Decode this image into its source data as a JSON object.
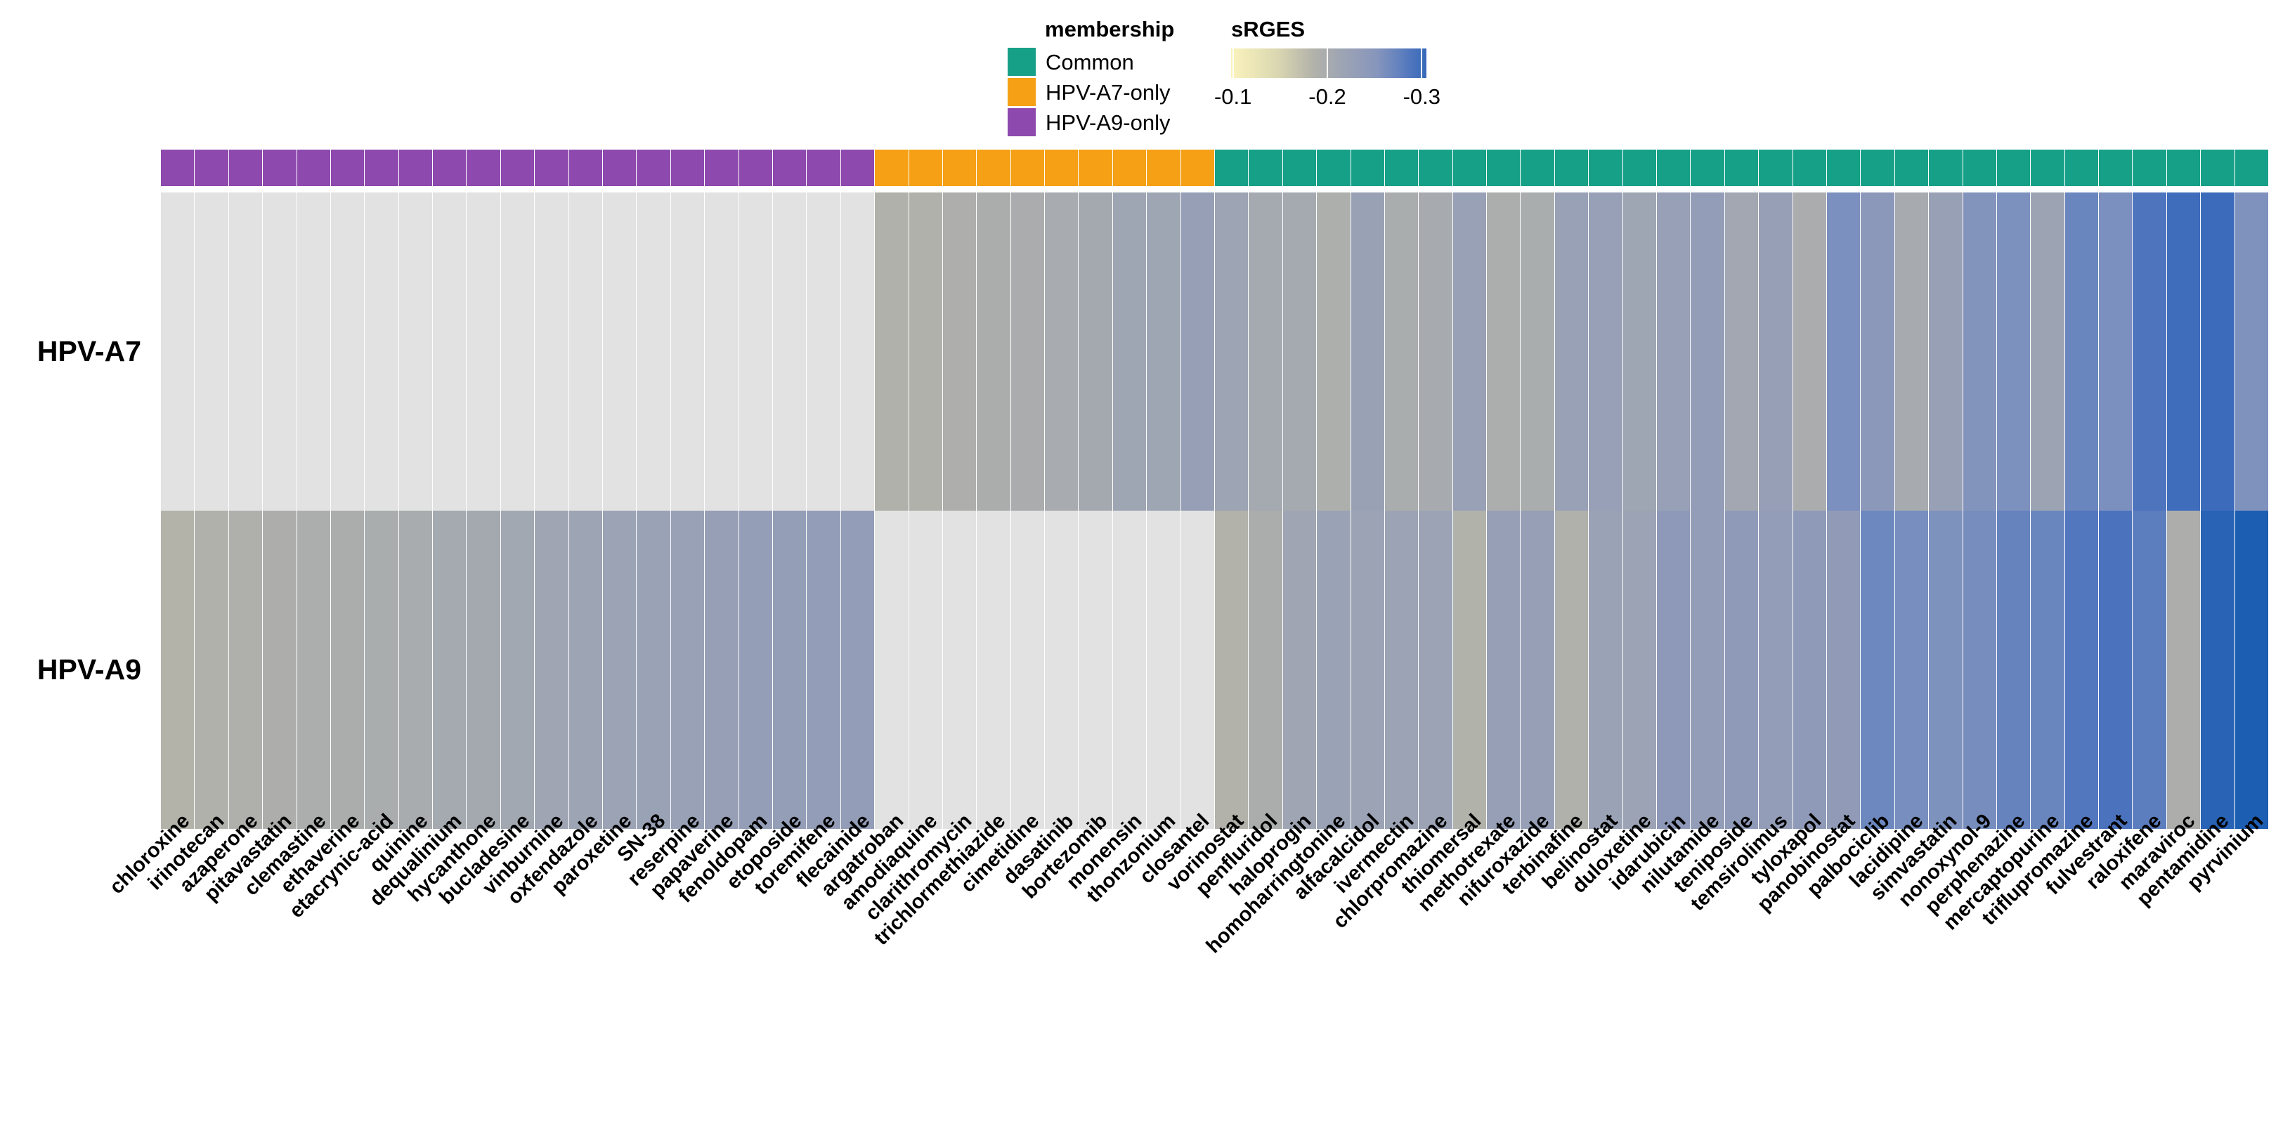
{
  "legend": {
    "membership": {
      "title": "membership",
      "items": [
        {
          "label": "Common",
          "color": "#17A088"
        },
        {
          "label": "HPV-A7-only",
          "color": "#F5A015"
        },
        {
          "label": "HPV-A9-only",
          "color": "#8E49AE"
        }
      ]
    },
    "srges": {
      "title": "sRGES",
      "tick_labels": [
        "-0.1",
        "-0.2",
        "-0.3"
      ],
      "tick_values": [
        -0.1,
        -0.2,
        -0.3
      ]
    }
  },
  "chart_data": {
    "type": "heatmap",
    "title": "",
    "value_label": "sRGES",
    "legend_position": "top",
    "grid": false,
    "rows": [
      "HPV-A7",
      "HPV-A9"
    ],
    "categories": [
      "chloroxine",
      "irinotecan",
      "azaperone",
      "pitavastatin",
      "clemastine",
      "ethaverine",
      "etacrynic-acid",
      "quinine",
      "dequalinium",
      "hycanthone",
      "bucladesine",
      "vinburnine",
      "oxfendazole",
      "paroxetine",
      "SN-38",
      "reserpine",
      "papaverine",
      "fenoldopam",
      "etoposide",
      "toremifene",
      "flecainide",
      "argatroban",
      "amodiaquine",
      "clarithromycin",
      "trichlormethiazide",
      "cimetidine",
      "dasatinib",
      "bortezomib",
      "monensin",
      "thonzonium",
      "closantel",
      "vorinostat",
      "penfluridol",
      "haloprogin",
      "homoharringtonine",
      "alfacalcidol",
      "ivermectin",
      "chlorpromazine",
      "thiomersal",
      "methotrexate",
      "nifuroxazide",
      "terbinafine",
      "belinostat",
      "duloxetine",
      "idarubicin",
      "nilutamide",
      "teniposide",
      "temsirolimus",
      "tyloxapol",
      "panobinostat",
      "palbociclib",
      "lacidipine",
      "simvastatin",
      "nonoxynol-9",
      "perphenazine",
      "mercaptopurine",
      "triflupromazine",
      "fulvestrant",
      "raloxifene",
      "maraviroc",
      "pentamidine",
      "pyrvinium"
    ],
    "series": [
      {
        "name": "HPV-A7",
        "values": [
          null,
          null,
          null,
          null,
          null,
          null,
          null,
          null,
          null,
          null,
          null,
          null,
          null,
          null,
          null,
          null,
          null,
          null,
          null,
          null,
          null,
          -0.187,
          -0.188,
          -0.192,
          -0.197,
          -0.199,
          -0.202,
          -0.207,
          -0.213,
          -0.215,
          -0.229,
          -0.216,
          -0.206,
          -0.205,
          -0.193,
          -0.222,
          -0.198,
          -0.203,
          -0.224,
          -0.195,
          -0.198,
          -0.224,
          -0.226,
          -0.215,
          -0.226,
          -0.234,
          -0.21,
          -0.228,
          -0.199,
          -0.262,
          -0.248,
          -0.203,
          -0.225,
          -0.255,
          -0.261,
          -0.217,
          -0.272,
          -0.262,
          -0.29,
          -0.299,
          -0.301,
          -0.259
        ]
      },
      {
        "name": "HPV-A9",
        "values": [
          -0.184,
          -0.188,
          -0.19,
          -0.194,
          -0.195,
          -0.197,
          -0.198,
          -0.2,
          -0.205,
          -0.207,
          -0.209,
          -0.214,
          -0.216,
          -0.218,
          -0.221,
          -0.224,
          -0.228,
          -0.23,
          -0.231,
          -0.234,
          -0.235,
          null,
          null,
          null,
          null,
          null,
          null,
          null,
          null,
          null,
          null,
          -0.185,
          -0.197,
          -0.214,
          -0.221,
          -0.219,
          -0.218,
          -0.219,
          -0.186,
          -0.229,
          -0.228,
          -0.188,
          -0.221,
          -0.219,
          -0.245,
          -0.235,
          -0.243,
          -0.233,
          -0.242,
          -0.239,
          -0.27,
          -0.264,
          -0.26,
          -0.265,
          -0.274,
          -0.272,
          -0.286,
          -0.291,
          -0.28,
          -0.194,
          -0.313,
          -0.32
        ]
      }
    ],
    "column_groups": [
      {
        "label": "HPV-A9-only",
        "color": "#8E49AE",
        "start": 1,
        "end": 21
      },
      {
        "label": "HPV-A7-only",
        "color": "#F5A015",
        "start": 22,
        "end": 31
      },
      {
        "label": "Common",
        "color": "#17A088",
        "start": 32,
        "end": 62
      }
    ],
    "na_color": "#E2E2E2",
    "color_domain": [
      -0.098,
      -0.305
    ],
    "color_stops": [
      {
        "v": -0.1,
        "c": "#FAF3BC"
      },
      {
        "v": -0.15,
        "c": "#D8D5B1"
      },
      {
        "v": -0.185,
        "c": "#B2B2AA"
      },
      {
        "v": -0.2,
        "c": "#A9ACAE"
      },
      {
        "v": -0.22,
        "c": "#9AA2B5"
      },
      {
        "v": -0.245,
        "c": "#8E99B9"
      },
      {
        "v": -0.26,
        "c": "#7E92BE"
      },
      {
        "v": -0.285,
        "c": "#5478BE"
      },
      {
        "v": -0.3,
        "c": "#3E6CBB"
      },
      {
        "v": -0.32,
        "c": "#1C5EB2"
      }
    ]
  }
}
